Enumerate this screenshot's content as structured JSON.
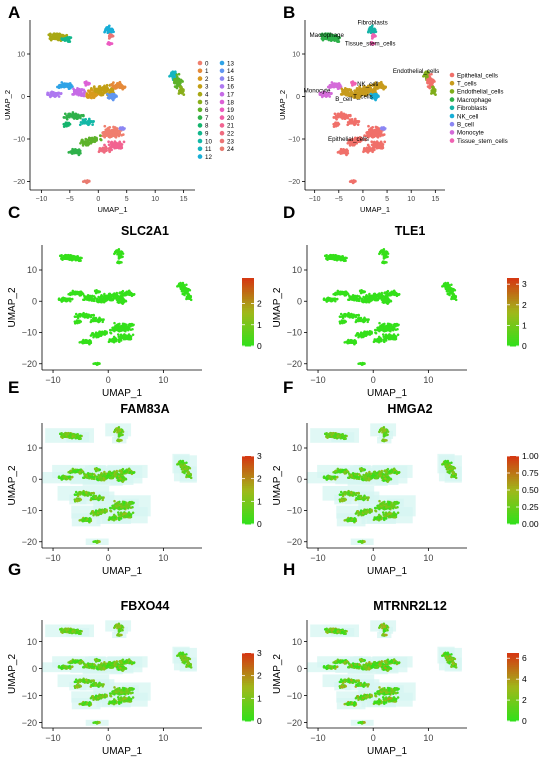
{
  "chart_data": [
    {
      "panel": "A",
      "type": "scatter",
      "title": "",
      "xlabel": "UMAP_1",
      "ylabel": "UMAP_2",
      "xlim": [
        -12,
        17
      ],
      "ylim": [
        -22,
        18
      ],
      "xticks": [
        -10,
        -5,
        0,
        5,
        10,
        15
      ],
      "yticks": [
        -20,
        -10,
        0,
        10
      ],
      "legend_position": "right",
      "legend_columns": 2,
      "legend": [
        "0",
        "1",
        "2",
        "3",
        "4",
        "5",
        "6",
        "7",
        "8",
        "9",
        "10",
        "11",
        "12",
        "13",
        "14",
        "15",
        "16",
        "17",
        "18",
        "19",
        "20",
        "21",
        "22",
        "23",
        "24"
      ],
      "colors": [
        "#f07f6e",
        "#e58a3a",
        "#d89a1d",
        "#c29f14",
        "#a8a814",
        "#89ae1a",
        "#5db22a",
        "#2fb14a",
        "#14b46d",
        "#12b78c",
        "#13b8a7",
        "#14b5c0",
        "#18aed7",
        "#2fa3e6",
        "#6096f1",
        "#8b86f3",
        "#ae78f0",
        "#c66be6",
        "#dd61d6",
        "#ec5bc1",
        "#f25da8",
        "#f26391",
        "#ef6c80",
        "#ec7475",
        "#e97b70"
      ],
      "clusters": [
        {
          "label": "12",
          "x": 1.5,
          "y": 15.5
        },
        {
          "label": "4",
          "x": -7.0,
          "y": 14.0
        },
        {
          "label": "0",
          "x": 2.5,
          "y": -10.0
        },
        {
          "label": "3",
          "x": 0.0,
          "y": 2.0
        },
        {
          "label": "6",
          "x": 14.0,
          "y": 5.0
        },
        {
          "label": "24",
          "x": -2.0,
          "y": -20.0
        }
      ]
    },
    {
      "panel": "B",
      "type": "scatter",
      "title": "",
      "xlabel": "UMAP_1",
      "ylabel": "UMAP_2",
      "xlim": [
        -12,
        17
      ],
      "ylim": [
        -22,
        18
      ],
      "xticks": [
        -10,
        -5,
        0,
        5,
        10,
        15
      ],
      "yticks": [
        -20,
        -10,
        0,
        10
      ],
      "legend_position": "right",
      "legend": [
        "Epithelial_cells",
        "T_cells",
        "Endothelial_cells",
        "Macrophage",
        "Fibroblasts",
        "NK_cell",
        "B_cell",
        "Monocyte",
        "Tissue_stem_cells"
      ],
      "colors": [
        "#f0706a",
        "#c79b1d",
        "#7fad1a",
        "#2fb14a",
        "#14b3a6",
        "#18aed7",
        "#8b86f3",
        "#d46bd9",
        "#f062b2"
      ],
      "annotations": [
        {
          "text": "Fibroblasts",
          "x": 2.0,
          "y": 17.0
        },
        {
          "text": "Macrophage",
          "x": -7.5,
          "y": 14.0
        },
        {
          "text": "Tissue_stem_cells",
          "x": 1.5,
          "y": 12.0
        },
        {
          "text": "Endothelial_cells",
          "x": 11.0,
          "y": 5.5
        },
        {
          "text": "NK_cell",
          "x": 1.0,
          "y": 2.5
        },
        {
          "text": "Monocyte",
          "x": -9.5,
          "y": 1.0
        },
        {
          "text": "T_cells",
          "x": 0.0,
          "y": -0.5
        },
        {
          "text": "B_cell",
          "x": -4.0,
          "y": -1.0
        },
        {
          "text": "Epithelial_cells",
          "x": -3.0,
          "y": -10.5
        }
      ]
    },
    {
      "panel": "C",
      "type": "scatter",
      "title": "SLC2A1",
      "xlabel": "UMAP_1",
      "ylabel": "UMAP_2",
      "xlim": [
        -12,
        17
      ],
      "ylim": [
        -22,
        18
      ],
      "xticks": [
        -10,
        0,
        10
      ],
      "yticks": [
        -20,
        -10,
        0,
        10
      ],
      "colorbar": {
        "ticks": [
          "0",
          "1",
          "2"
        ],
        "max": 3.2
      },
      "background_halo": false
    },
    {
      "panel": "D",
      "type": "scatter",
      "title": "TLE1",
      "xlabel": "UMAP_1",
      "ylabel": "UMAP_2",
      "xlim": [
        -12,
        17
      ],
      "ylim": [
        -22,
        18
      ],
      "xticks": [
        -10,
        0,
        10
      ],
      "yticks": [
        -20,
        -10,
        0,
        10
      ],
      "colorbar": {
        "ticks": [
          "0",
          "1",
          "2",
          "3"
        ],
        "max": 3.3
      },
      "background_halo": false
    },
    {
      "panel": "E",
      "type": "scatter",
      "title": "FAM83A",
      "xlabel": "UMAP_1",
      "ylabel": "UMAP_2",
      "xlim": [
        -12,
        17
      ],
      "ylim": [
        -22,
        18
      ],
      "xticks": [
        -10,
        0,
        10
      ],
      "yticks": [
        -20,
        -10,
        0,
        10
      ],
      "colorbar": {
        "ticks": [
          "0",
          "1",
          "2",
          "3"
        ],
        "max": 3.0
      },
      "background_halo": true
    },
    {
      "panel": "F",
      "type": "scatter",
      "title": "HMGA2",
      "xlabel": "UMAP_1",
      "ylabel": "UMAP_2",
      "xlim": [
        -12,
        17
      ],
      "ylim": [
        -22,
        18
      ],
      "xticks": [
        -10,
        0,
        10
      ],
      "yticks": [
        -20,
        -10,
        0,
        10
      ],
      "colorbar": {
        "ticks": [
          "0.00",
          "0.25",
          "0.50",
          "0.75",
          "1.00"
        ],
        "max": 1.0
      },
      "background_halo": true
    },
    {
      "panel": "G",
      "type": "scatter",
      "title": "FBXO44",
      "xlabel": "UMAP_1",
      "ylabel": "UMAP_2",
      "xlim": [
        -12,
        17
      ],
      "ylim": [
        -22,
        18
      ],
      "xticks": [
        -10,
        0,
        10
      ],
      "yticks": [
        -20,
        -10,
        0,
        10
      ],
      "colorbar": {
        "ticks": [
          "0",
          "1",
          "2",
          "3"
        ],
        "max": 3.0
      },
      "background_halo": true
    },
    {
      "panel": "H",
      "type": "scatter",
      "title": "MTRNR2L12",
      "xlabel": "UMAP_1",
      "ylabel": "UMAP_2",
      "xlim": [
        -12,
        17
      ],
      "ylim": [
        -22,
        18
      ],
      "xticks": [
        -10,
        0,
        10
      ],
      "yticks": [
        -20,
        -10,
        0,
        10
      ],
      "colorbar": {
        "ticks": [
          "0",
          "2",
          "4",
          "6"
        ],
        "max": 6.5
      },
      "background_halo": true
    }
  ],
  "colors": {
    "feature_low": "#33e01a",
    "feature_mid": "#a0b81a",
    "feature_high": "#d43a12",
    "halo": "#d6f5f2"
  }
}
